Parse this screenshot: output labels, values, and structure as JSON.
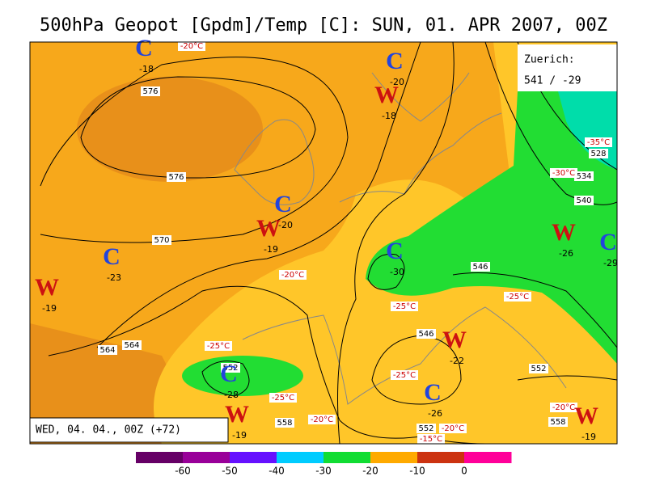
{
  "title": "500hPa Geopot [Gpdm]/Temp [C]: SUN, 01. APR 2007, 00Z",
  "valid_time": "WED, 04. 04., 00Z (+72)",
  "station": {
    "name": "Zuerich:",
    "value": "541 / -29"
  },
  "centers": [
    {
      "symbol": "C",
      "value": -18
    },
    {
      "symbol": "C",
      "value": -20
    },
    {
      "symbol": "W",
      "value": -18
    },
    {
      "symbol": "C",
      "value": -20
    },
    {
      "symbol": "W",
      "value": -19
    },
    {
      "symbol": "C",
      "value": -23
    },
    {
      "symbol": "W",
      "value": -19
    },
    {
      "symbol": "C",
      "value": -30
    },
    {
      "symbol": "W",
      "value": -26
    },
    {
      "symbol": "C",
      "value": -29
    },
    {
      "symbol": "W",
      "value": -22
    },
    {
      "symbol": "C",
      "value": -28
    },
    {
      "symbol": "C",
      "value": -26
    },
    {
      "symbol": "W",
      "value": -19
    },
    {
      "symbol": "W",
      "value": -19
    }
  ],
  "contour_labels": [
    576,
    576,
    570,
    564,
    564,
    558,
    552,
    552,
    552,
    546,
    546,
    540,
    534,
    528,
    558
  ],
  "temp_labels": [
    "-20°C",
    "-20°C",
    "-25°C",
    "-25°C",
    "-25°C",
    "-25°C",
    "-25°C",
    "-20°C",
    "-20°C",
    "-15°C",
    "-20°C",
    "-35°C",
    "-30°C"
  ],
  "colorbar": {
    "ticks": [
      -60,
      -50,
      -40,
      -30,
      -20,
      -10,
      0
    ],
    "colors": [
      "#660066",
      "#990099",
      "#6611ff",
      "#00ccff",
      "#11dd33",
      "#ffaa00",
      "#cc3311",
      "#ff0099"
    ]
  }
}
